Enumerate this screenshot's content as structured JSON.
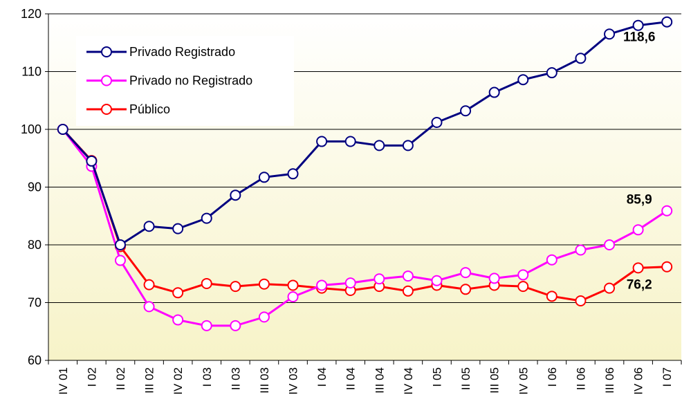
{
  "chart_data": {
    "type": "line",
    "categories": [
      "IV 01",
      "I 02",
      "II 02",
      "III 02",
      "IV 02",
      "I 03",
      "II 03",
      "III 03",
      "IV 03",
      "I 04",
      "II 04",
      "III 04",
      "IV 04",
      "I 05",
      "II 05",
      "III 05",
      "IV 05",
      "I 06",
      "II 06",
      "III 06",
      "IV 06",
      "I 07"
    ],
    "series": [
      {
        "name": "Privado Registrado",
        "color": "#000080",
        "values": [
          100,
          94.5,
          80,
          83.2,
          82.8,
          84.6,
          88.6,
          91.7,
          92.3,
          97.9,
          97.9,
          97.2,
          97.2,
          101.2,
          103.2,
          106.4,
          108.6,
          109.8,
          112.3,
          116.5,
          118.0,
          118.6
        ],
        "value_labels": [
          null,
          null,
          null,
          null,
          null,
          null,
          null,
          null,
          null,
          null,
          null,
          null,
          null,
          null,
          null,
          null,
          null,
          null,
          null,
          null,
          null,
          "118,6"
        ]
      },
      {
        "name": "Privado no Registrado",
        "color": "#ff00ff",
        "values": [
          100,
          93.6,
          77.3,
          69.3,
          67.0,
          66.0,
          66.0,
          67.5,
          71.0,
          73.0,
          73.4,
          74.1,
          74.6,
          73.8,
          75.2,
          74.2,
          74.8,
          77.4,
          79.1,
          80.0,
          82.6,
          85.9
        ],
        "value_labels": [
          null,
          null,
          null,
          null,
          null,
          null,
          null,
          null,
          null,
          null,
          null,
          null,
          null,
          null,
          null,
          null,
          null,
          null,
          null,
          null,
          null,
          "85,9"
        ]
      },
      {
        "name": "Público",
        "color": "#ff0000",
        "values": [
          100,
          94.6,
          79.7,
          73.1,
          71.7,
          73.3,
          72.8,
          73.2,
          73.0,
          72.5,
          72.1,
          72.8,
          72.0,
          73.0,
          72.3,
          73.0,
          72.8,
          71.1,
          70.3,
          72.5,
          76.0,
          76.2
        ],
        "value_labels": [
          null,
          null,
          null,
          null,
          null,
          null,
          null,
          null,
          null,
          null,
          null,
          null,
          null,
          null,
          null,
          null,
          null,
          null,
          null,
          null,
          null,
          "76,2"
        ]
      }
    ],
    "ylim": [
      60,
      120
    ],
    "yticks": [
      60,
      70,
      80,
      90,
      100,
      110,
      120
    ],
    "grid": true
  }
}
